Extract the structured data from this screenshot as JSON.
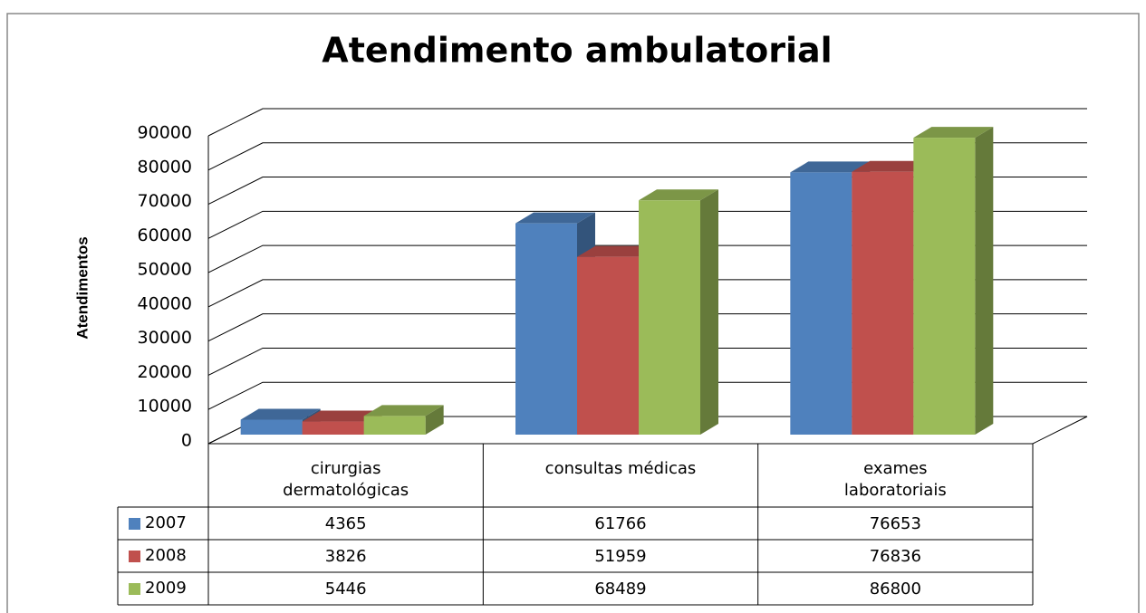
{
  "chart_data": {
    "type": "bar3d",
    "title": "Atendimento ambulatorial",
    "ylabel": "Atendimentos",
    "categories": [
      "cirurgias dermatológicas",
      "consultas médicas",
      "exames laboratoriais"
    ],
    "series": [
      {
        "name": "2007",
        "color": "#4f81bd",
        "values": [
          4365,
          61766,
          76653
        ]
      },
      {
        "name": "2008",
        "color": "#c0504d",
        "values": [
          3826,
          51959,
          76836
        ]
      },
      {
        "name": "2009",
        "color": "#9bbb59",
        "values": [
          5446,
          68489,
          86800
        ]
      }
    ],
    "ylim": [
      0,
      90000
    ],
    "yticks": [
      0,
      10000,
      20000,
      30000,
      40000,
      50000,
      60000,
      70000,
      80000,
      90000
    ],
    "grid": true,
    "data_table": true
  }
}
